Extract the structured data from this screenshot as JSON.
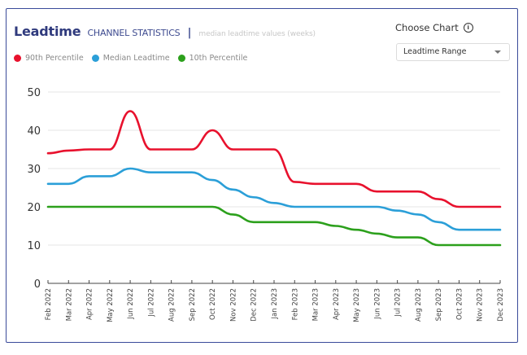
{
  "header": {
    "title": "Leadtime",
    "subtitle": "CHANNEL STATISTICS",
    "separator": "|",
    "note": "median leadtime values (weeks)"
  },
  "controls": {
    "choose_label": "Choose Chart",
    "info_icon": "info-icon",
    "dropdown_value": "Leadtime Range"
  },
  "chart_data": {
    "type": "line",
    "title": "Leadtime CHANNEL STATISTICS",
    "subtitle": "median leadtime values (weeks)",
    "xlabel": "",
    "ylabel": "",
    "ylim": [
      0,
      50
    ],
    "yticks": [
      0,
      10,
      20,
      30,
      40,
      50
    ],
    "grid": true,
    "legend_position": "top-left",
    "x": [
      "Feb 2022",
      "Mar 2022",
      "Apr 2022",
      "May 2022",
      "Jun 2022",
      "Jul 2022",
      "Aug 2022",
      "Sep 2022",
      "Oct 2022",
      "Nov 2022",
      "Dec 2022",
      "Jan 2023",
      "Feb 2023",
      "Mar 2023",
      "Apr 2023",
      "May 2023",
      "Jun 2023",
      "Jul 2023",
      "Aug 2023",
      "Sep 2023",
      "Oct 2023",
      "Nov 2023",
      "Dec 2023"
    ],
    "series": [
      {
        "name": "90th Percentile",
        "color": "#e8112d",
        "values": [
          34,
          34.7,
          35,
          35,
          45,
          35,
          35,
          35,
          40,
          35,
          35,
          35,
          26.5,
          26,
          26,
          26,
          24,
          24,
          24,
          22,
          20,
          20,
          20
        ]
      },
      {
        "name": "Median Leadtime",
        "color": "#2b9fd8",
        "values": [
          26,
          26,
          28,
          28,
          30,
          29,
          29,
          29,
          27,
          24.5,
          22.5,
          21,
          20,
          20,
          20,
          20,
          20,
          19,
          18,
          16,
          14,
          14,
          14
        ]
      },
      {
        "name": "10th Percentile",
        "color": "#2ca01c",
        "values": [
          20,
          20,
          20,
          20,
          20,
          20,
          20,
          20,
          20,
          18,
          16,
          16,
          16,
          16,
          15,
          14,
          13,
          12,
          12,
          10,
          10,
          10,
          10
        ]
      }
    ]
  }
}
